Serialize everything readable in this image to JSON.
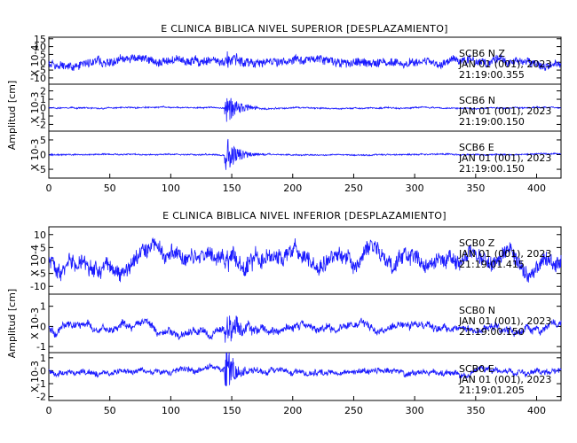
{
  "chart_data": [
    {
      "type": "line",
      "title": "E CLINICA BIBLICA NIVEL SUPERIOR [DESPLAZAMIENTO]",
      "ylabel": "Amplitud [cm]",
      "xlim": [
        0,
        420
      ],
      "xticks": [
        0,
        50,
        100,
        150,
        200,
        250,
        300,
        350,
        400
      ],
      "panels": [
        {
          "channel": "SCB6 N Z",
          "scale": "X 10-4",
          "date": "JAN 01 (001), 2023",
          "time": "21:19:00.355",
          "yticks": [
            15,
            10,
            5,
            0,
            -5,
            -10
          ],
          "ylim": [
            -14,
            16
          ],
          "event_x": 147,
          "trace": {
            "seed": 11,
            "noise": 2.4,
            "wander": 3.2,
            "burst": 5,
            "burst_decay": 12
          }
        },
        {
          "channel": "SCB6 N",
          "scale": "X 10-3",
          "date": "JAN 01 (001), 2023",
          "time": "21:19:00.150",
          "yticks": [
            2,
            1,
            0,
            -1,
            -2
          ],
          "ylim": [
            -2.8,
            2.8
          ],
          "event_x": 147,
          "trace": {
            "seed": 23,
            "noise": 0.07,
            "wander": 0.12,
            "burst": 1.8,
            "burst_decay": 10
          }
        },
        {
          "channel": "SCB6 E",
          "scale": "X 10-3",
          "date": "JAN 01 (001), 2023",
          "time": "21:19:00.150",
          "yticks": [
            5,
            0,
            -5
          ],
          "ylim": [
            -8,
            8
          ],
          "event_x": 147,
          "trace": {
            "seed": 37,
            "noise": 0.2,
            "wander": 0.25,
            "burst": 5.8,
            "burst_decay": 9
          }
        }
      ]
    },
    {
      "type": "line",
      "title": "E CLINICA BIBLICA NIVEL INFERIOR [DESPLAZAMIENTO]",
      "ylabel": "Amplitud [cm]",
      "xlim": [
        0,
        420
      ],
      "xticks": [
        0,
        50,
        100,
        150,
        200,
        250,
        300,
        350,
        400
      ],
      "panels": [
        {
          "channel": "SCB0 Z",
          "scale": "X 10-4",
          "date": "JAN 01 (001), 2023",
          "time": "21:19:01.415",
          "yticks": [
            10,
            5,
            0,
            -5,
            -10
          ],
          "ylim": [
            -13,
            13
          ],
          "event_x": 147,
          "trace": {
            "seed": 51,
            "noise": 2.6,
            "wander": 5.5,
            "burst": 3,
            "burst_decay": 15
          }
        },
        {
          "channel": "SCB0 N",
          "scale": "X 10-3",
          "date": "JAN 01 (001), 2023",
          "time": "21:19:00.150",
          "yticks": [
            1,
            0,
            -1
          ],
          "ylim": [
            -1.3,
            1.6
          ],
          "event_x": 147,
          "trace": {
            "seed": 67,
            "noise": 0.15,
            "wander": 0.35,
            "burst": 0.8,
            "burst_decay": 12
          }
        },
        {
          "channel": "SCB0 E",
          "scale": "X 10-3",
          "date": "JAN 01 (001), 2023",
          "time": "21:19:01.205",
          "yticks": [
            1,
            0,
            -1,
            -2
          ],
          "ylim": [
            -2.3,
            1.4
          ],
          "event_x": 147,
          "trace": {
            "seed": 79,
            "noise": 0.18,
            "wander": 0.4,
            "burst": 1.6,
            "burst_decay": 8
          }
        }
      ]
    }
  ]
}
